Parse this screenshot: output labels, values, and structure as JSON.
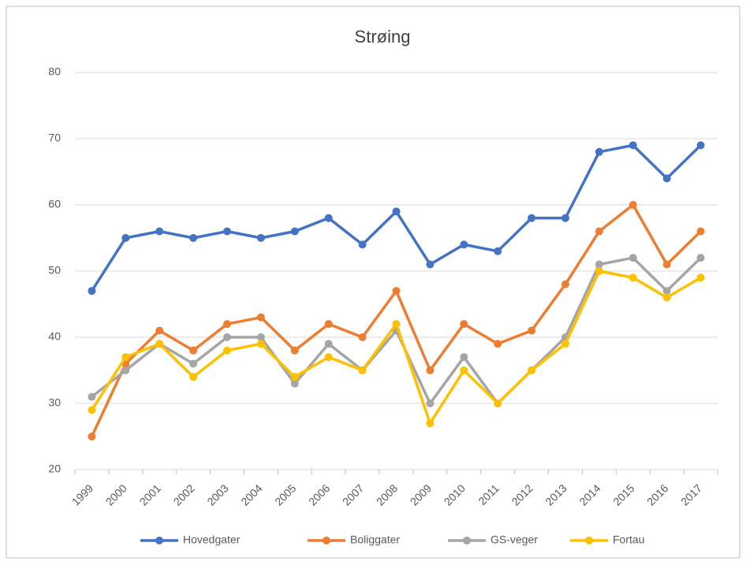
{
  "chart_data": {
    "type": "line",
    "title": "Strøing",
    "categories": [
      "1999",
      "2000",
      "2001",
      "2002",
      "2003",
      "2004",
      "2005",
      "2006",
      "2007",
      "2008",
      "2009",
      "2010",
      "2011",
      "2012",
      "2013",
      "2014",
      "2015",
      "2016",
      "2017"
    ],
    "series": [
      {
        "name": "Hovedgater",
        "color": "#4472c4",
        "values": [
          47,
          55,
          56,
          55,
          56,
          55,
          56,
          58,
          54,
          59,
          51,
          54,
          53,
          58,
          58,
          68,
          69,
          64,
          69
        ]
      },
      {
        "name": "Boliggater",
        "color": "#ed7d31",
        "values": [
          25,
          36,
          41,
          38,
          42,
          43,
          38,
          42,
          40,
          47,
          35,
          42,
          39,
          41,
          48,
          56,
          60,
          51,
          56
        ]
      },
      {
        "name": "GS-veger",
        "color": "#a5a5a5",
        "values": [
          31,
          35,
          39,
          36,
          40,
          40,
          33,
          39,
          35,
          41,
          30,
          37,
          30,
          35,
          40,
          51,
          52,
          47,
          52
        ]
      },
      {
        "name": "Fortau",
        "color": "#ffc000",
        "values": [
          29,
          37,
          39,
          34,
          38,
          39,
          34,
          37,
          35,
          42,
          27,
          35,
          30,
          35,
          39,
          50,
          49,
          46,
          49
        ]
      }
    ],
    "ylim": [
      20,
      80
    ],
    "yticks": [
      20,
      30,
      40,
      50,
      60,
      70,
      80
    ],
    "grid": true,
    "legend": "bottom"
  }
}
